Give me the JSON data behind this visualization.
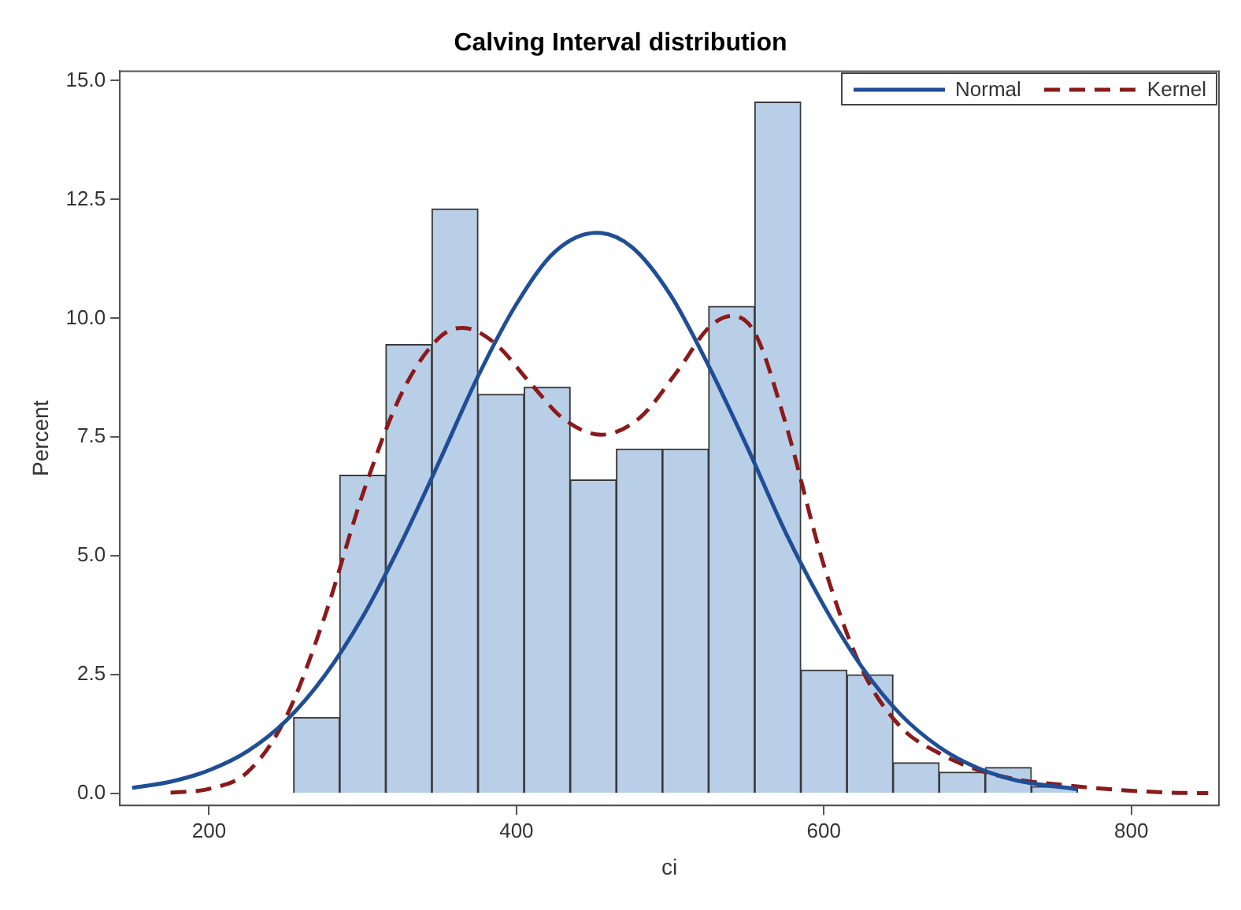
{
  "chart_data": {
    "type": "histogram",
    "title": "Calving Interval distribution",
    "xlabel": "ci",
    "ylabel": "Percent",
    "bins": [
      255,
      285,
      315,
      345,
      375,
      405,
      435,
      465,
      495,
      525,
      555,
      585,
      615,
      645,
      675,
      705,
      735,
      765
    ],
    "values": [
      1.6,
      6.7,
      9.45,
      12.3,
      8.4,
      8.55,
      6.6,
      7.25,
      7.25,
      10.25,
      14.55,
      2.6,
      2.5,
      0.65,
      0.45,
      0.55,
      0.15
    ],
    "color": "#b9cfe8",
    "series": [
      {
        "name": "Normal",
        "type": "line",
        "color": "#1f4e96",
        "line_style": "solid",
        "x": [
          150,
          175,
          200,
          225,
          250,
          275,
          300,
          325,
          350,
          375,
          400,
          425,
          452,
          475,
          500,
          525,
          550,
          575,
          600,
          625,
          650,
          675,
          700,
          725,
          765
        ],
        "values": [
          0.12,
          0.25,
          0.49,
          0.89,
          1.53,
          2.47,
          3.72,
          5.27,
          7.0,
          8.78,
          10.3,
          11.4,
          11.8,
          11.5,
          10.5,
          9.0,
          7.3,
          5.5,
          3.95,
          2.65,
          1.66,
          0.98,
          0.54,
          0.28,
          0.09
        ]
      },
      {
        "name": "Kernel",
        "type": "line",
        "color": "#8b1a1a",
        "line_style": "dashed",
        "x": [
          175,
          200,
          225,
          250,
          275,
          300,
          325,
          350,
          365,
          385,
          410,
          430,
          455,
          480,
          505,
          525,
          540,
          555,
          575,
          600,
          625,
          650,
          675,
          700,
          725,
          750,
          775,
          800,
          825,
          850
        ],
        "values": [
          0.02,
          0.1,
          0.45,
          1.6,
          3.7,
          6.3,
          8.4,
          9.6,
          9.8,
          9.5,
          8.6,
          7.9,
          7.55,
          7.9,
          8.9,
          9.8,
          10.05,
          9.7,
          7.8,
          4.8,
          2.6,
          1.4,
          0.85,
          0.5,
          0.3,
          0.2,
          0.12,
          0.06,
          0.02,
          0.01
        ]
      }
    ],
    "xlim": [
      142,
      857
    ],
    "xticks": [
      200,
      400,
      600,
      800
    ],
    "ylim": [
      -0.25,
      15.2
    ],
    "yticks": [
      {
        "value": 0,
        "label": "0.0"
      },
      {
        "value": 2.5,
        "label": "2.5"
      },
      {
        "value": 5,
        "label": "5.0"
      },
      {
        "value": 7.5,
        "label": "7.5"
      },
      {
        "value": 10,
        "label": "10.0"
      },
      {
        "value": 12.5,
        "label": "12.5"
      },
      {
        "value": 15,
        "label": "15.0"
      }
    ],
    "grid": false,
    "legend": "top right"
  }
}
